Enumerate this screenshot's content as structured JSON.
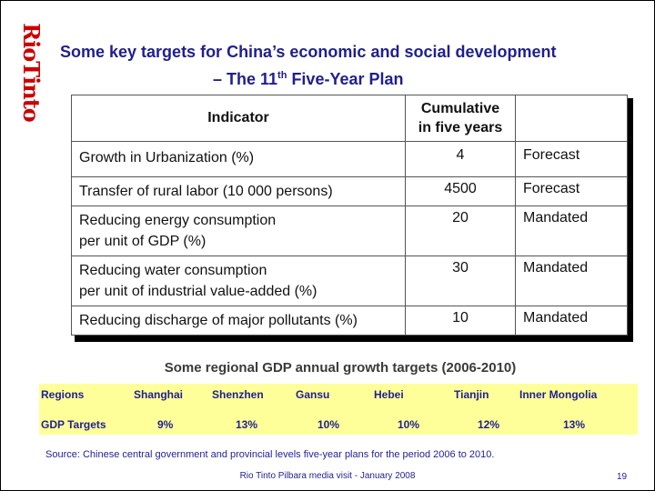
{
  "logo": {
    "text": "RioTinto",
    "color": "#cc0000"
  },
  "title": {
    "line1": "Some key targets for China’s economic and social development",
    "line2_prefix": "– The 11",
    "line2_sup": "th",
    "line2_suffix": " Five-Year Plan"
  },
  "table": {
    "headers": [
      "Indicator",
      "Cumulative in five years",
      ""
    ],
    "rows": [
      {
        "indicator": "Growth in Urbanization (%)",
        "value": "4",
        "type": "Forecast"
      },
      {
        "indicator": "Transfer of rural labor (10 000 persons)",
        "value": "4500",
        "type": "Forecast"
      },
      {
        "indicator_line1": "Reducing energy consumption",
        "indicator_line2": "per unit of GDP (%)",
        "value": "20",
        "type": "Mandated"
      },
      {
        "indicator_line1": "Reducing water consumption",
        "indicator_line2": "per unit of industrial value-added (%)",
        "value": "30",
        "type": "Mandated"
      },
      {
        "indicator": "Reducing discharge of major pollutants (%)",
        "value": "10",
        "type": "Mandated"
      }
    ]
  },
  "regional": {
    "subtitle": "Some regional GDP annual growth targets  (2006-2010)",
    "regions_label": "Regions",
    "targets_label": "GDP Targets",
    "regions": [
      "Shanghai",
      "Shenzhen",
      "Gansu",
      "Hebei",
      "Tianjin",
      "Inner Mongolia"
    ],
    "targets": [
      "9%",
      "13%",
      "10%",
      "10%",
      "12%",
      "13%"
    ],
    "background": "#ffff99"
  },
  "source": "Source: Chinese central government and provincial levels five-year plans for the period 2006 to 2010.",
  "footer": "Rio Tinto Pilbara media visit - January 2008",
  "page_number": "19"
}
